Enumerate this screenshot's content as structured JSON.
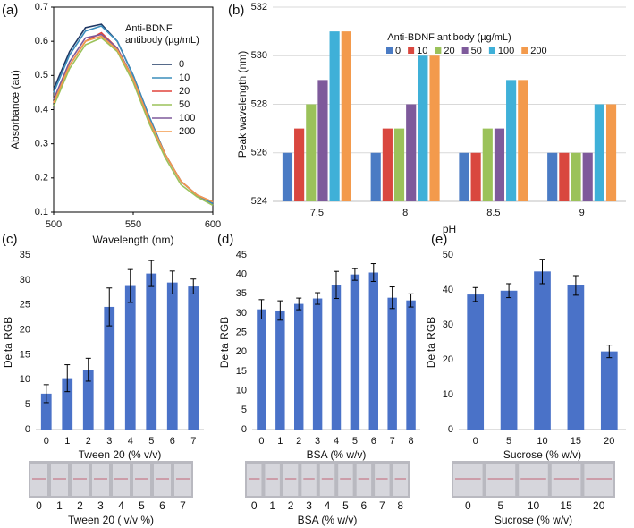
{
  "chart_data": [
    {
      "type": "line",
      "panel_label": "(a)",
      "xlabel": "Wavelength (nm)",
      "ylabel": "Absorbance (au)",
      "legend_title": "Anti-BDNF antibody (µg/mL)",
      "legend": "upper right",
      "x": [
        500,
        510,
        520,
        530,
        540,
        550,
        560,
        570,
        580,
        590,
        600
      ],
      "xlim": [
        500,
        600
      ],
      "xticks": [
        500,
        550,
        600
      ],
      "ylim": [
        0.1,
        0.7
      ],
      "yticks": [
        0.1,
        0.2,
        0.3,
        0.4,
        0.5,
        0.6,
        0.7
      ],
      "series": [
        {
          "name": "0",
          "color": "#1f3864",
          "values": [
            0.46,
            0.57,
            0.64,
            0.65,
            0.6,
            0.5,
            0.38,
            0.27,
            0.19,
            0.15,
            0.125
          ]
        },
        {
          "name": "10",
          "color": "#3c8dbc",
          "values": [
            0.45,
            0.56,
            0.63,
            0.645,
            0.6,
            0.5,
            0.38,
            0.27,
            0.19,
            0.15,
            0.125
          ]
        },
        {
          "name": "20",
          "color": "#e0443c",
          "values": [
            0.42,
            0.53,
            0.6,
            0.625,
            0.58,
            0.49,
            0.37,
            0.27,
            0.19,
            0.15,
            0.13
          ]
        },
        {
          "name": "50",
          "color": "#9bc25a",
          "values": [
            0.41,
            0.52,
            0.59,
            0.61,
            0.57,
            0.48,
            0.36,
            0.26,
            0.18,
            0.145,
            0.12
          ]
        },
        {
          "name": "100",
          "color": "#7e5a9b",
          "values": [
            0.43,
            0.54,
            0.61,
            0.62,
            0.58,
            0.49,
            0.37,
            0.27,
            0.19,
            0.15,
            0.13
          ]
        },
        {
          "name": "200",
          "color": "#f39a4c",
          "values": [
            0.42,
            0.53,
            0.6,
            0.615,
            0.575,
            0.49,
            0.37,
            0.27,
            0.19,
            0.15,
            0.13
          ]
        }
      ]
    },
    {
      "type": "bar",
      "panel_label": "(b)",
      "xlabel": "pH",
      "ylabel": "Peak wavelength (nm)",
      "legend_title": "Anti-BDNF antibody (µg/mL)",
      "legend": "upper center",
      "grid": true,
      "categories": [
        "7.5",
        "8",
        "8.5",
        "9"
      ],
      "ylim": [
        524,
        532
      ],
      "yticks": [
        524,
        526,
        528,
        530,
        532
      ],
      "series": [
        {
          "name": "0",
          "color": "#4a7bc4",
          "values": [
            526,
            526,
            526,
            526
          ]
        },
        {
          "name": "10",
          "color": "#d9473f",
          "values": [
            527,
            527,
            526,
            526
          ]
        },
        {
          "name": "20",
          "color": "#9bc25a",
          "values": [
            528,
            527,
            527,
            526
          ]
        },
        {
          "name": "50",
          "color": "#7e5a9b",
          "values": [
            529,
            528,
            527,
            526
          ]
        },
        {
          "name": "100",
          "color": "#3fb0d8",
          "values": [
            531,
            530,
            529,
            528
          ]
        },
        {
          "name": "200",
          "color": "#f39a4c",
          "values": [
            531,
            530,
            529,
            528
          ]
        }
      ]
    },
    {
      "type": "bar",
      "panel_label": "(c)",
      "xlabel": "Tween 20 (% v/v)",
      "ylabel": "Delta RGB",
      "color": "#4a72c8",
      "categories": [
        "0",
        "1",
        "2",
        "3",
        "4",
        "5",
        "6",
        "7"
      ],
      "values": [
        7.2,
        10.3,
        12,
        24.6,
        28.8,
        31.3,
        29.5,
        28.7
      ],
      "errors": [
        1.8,
        2.7,
        2.3,
        3.8,
        3.3,
        2.6,
        2.3,
        1.5
      ],
      "ylim": [
        0,
        35
      ],
      "yticks": [
        0,
        5,
        10,
        15,
        20,
        25,
        30,
        35
      ],
      "strip_labels": [
        "0",
        "1",
        "2",
        "3",
        "4",
        "5",
        "6",
        "7"
      ],
      "strip_caption": "Tween 20 ( v/v %)"
    },
    {
      "type": "bar",
      "panel_label": "(d)",
      "xlabel": "BSA (% w/v)",
      "ylabel": "Delta RGB",
      "color": "#4a72c8",
      "categories": [
        "0",
        "1",
        "2",
        "3",
        "4",
        "5",
        "6",
        "7",
        "8"
      ],
      "values": [
        31,
        30.7,
        32.4,
        33.8,
        37.3,
        40,
        40.5,
        34,
        33.3
      ],
      "errors": [
        2.5,
        2.5,
        1.5,
        1.5,
        3.5,
        1.5,
        2.3,
        2.8,
        1.7
      ],
      "ylim": [
        0,
        45
      ],
      "yticks": [
        0,
        5,
        10,
        15,
        20,
        25,
        30,
        35,
        40,
        45
      ],
      "strip_labels": [
        "0",
        "1",
        "2",
        "3",
        "4",
        "5",
        "6",
        "7",
        "8"
      ],
      "strip_caption": "BSA (% w/v)"
    },
    {
      "type": "bar",
      "panel_label": "(e)",
      "xlabel": "Sucrose (% w/v)",
      "ylabel": "Delta RGB",
      "color": "#4a72c8",
      "categories": [
        "0",
        "5",
        "10",
        "15",
        "20"
      ],
      "values": [
        38.7,
        39.8,
        45.3,
        41.3,
        22.4
      ],
      "errors": [
        2,
        2,
        3.5,
        2.8,
        1.8
      ],
      "ylim": [
        0,
        50
      ],
      "yticks": [
        0,
        10,
        20,
        30,
        40,
        50
      ],
      "strip_labels": [
        "0",
        "5",
        "10",
        "15",
        "20"
      ],
      "strip_caption": "Sucrose (% w/v)"
    }
  ]
}
